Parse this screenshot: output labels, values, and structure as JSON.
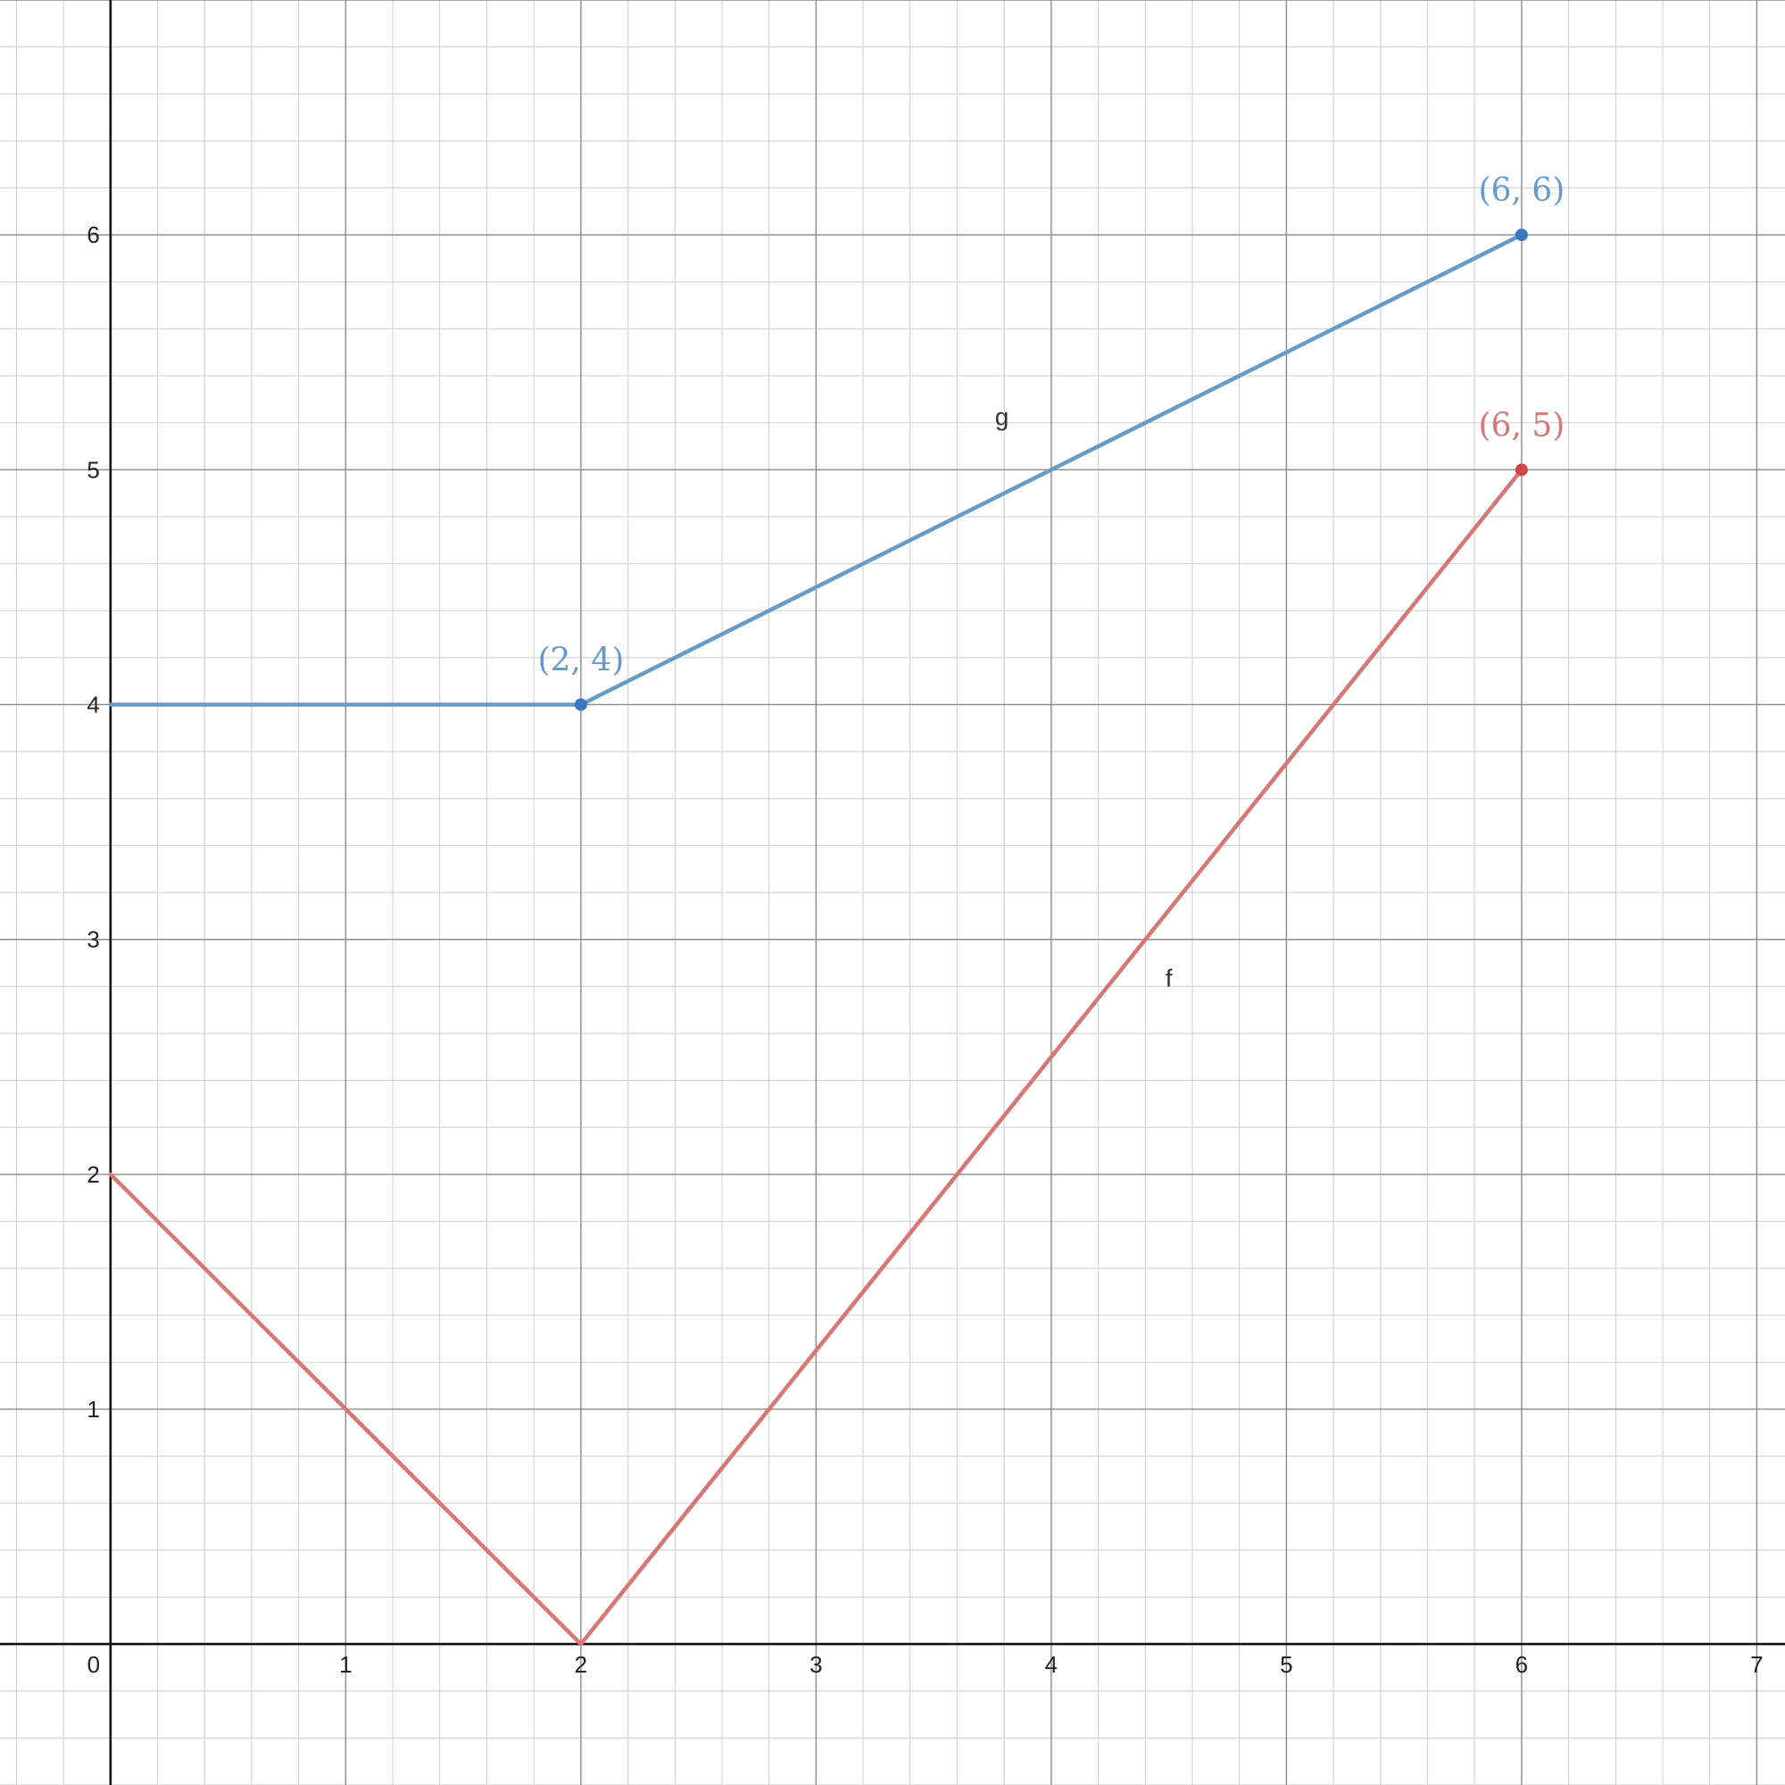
{
  "chart_data": {
    "type": "line",
    "xlim": [
      -0.47,
      7.12
    ],
    "ylim": [
      -0.6,
      7.0
    ],
    "grid": true,
    "x_ticks": [
      "0",
      "1",
      "2",
      "3",
      "4",
      "5",
      "6",
      "7"
    ],
    "y_ticks": [
      "1",
      "2",
      "3",
      "4",
      "5",
      "6"
    ],
    "series": [
      {
        "name": "g",
        "color": "#6699cc",
        "points": [
          [
            0,
            4
          ],
          [
            2,
            4
          ],
          [
            6,
            6
          ]
        ]
      },
      {
        "name": "f",
        "color": "#d97575",
        "points": [
          [
            0,
            2
          ],
          [
            2,
            0
          ],
          [
            6,
            5
          ]
        ]
      }
    ],
    "series_labels": [
      {
        "text": "g",
        "x": 3.79,
        "y": 5.19
      },
      {
        "text": "f",
        "x": 4.5,
        "y": 2.8
      }
    ],
    "marked_points": [
      {
        "x": 2,
        "y": 4,
        "label": "(2, 4)",
        "color": "#6699cc",
        "dot": "#3a78c3"
      },
      {
        "x": 6,
        "y": 6,
        "label": "(6, 6)",
        "color": "#6699cc",
        "dot": "#3a78c3"
      },
      {
        "x": 6,
        "y": 5,
        "label": "(6, 5)",
        "color": "#d97575",
        "dot": "#d04545"
      }
    ]
  }
}
